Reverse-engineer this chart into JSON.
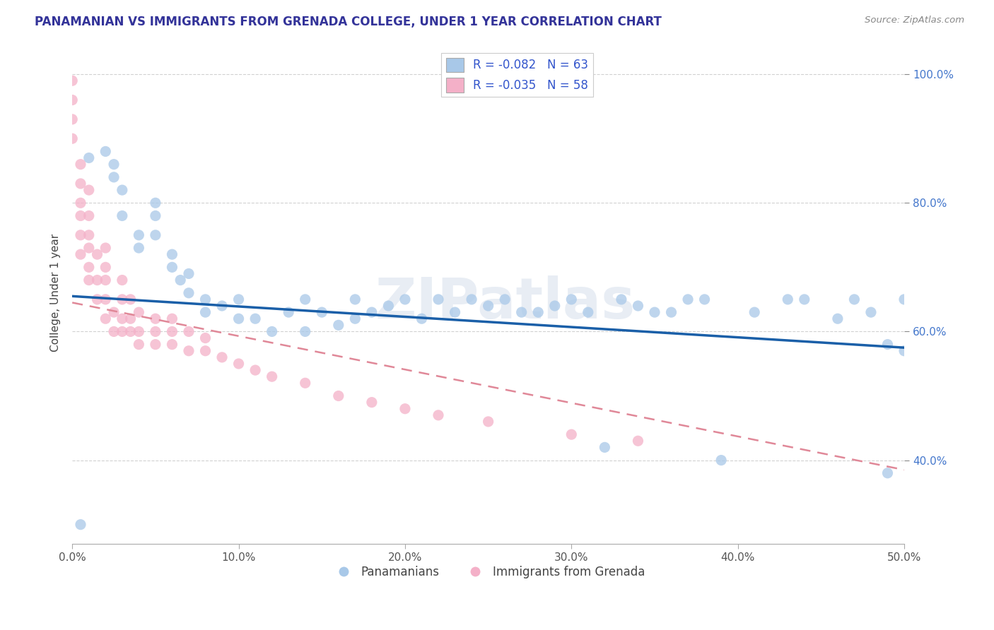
{
  "title": "PANAMANIAN VS IMMIGRANTS FROM GRENADA COLLEGE, UNDER 1 YEAR CORRELATION CHART",
  "source": "Source: ZipAtlas.com",
  "ylabel": "College, Under 1 year",
  "xmin": 0.0,
  "xmax": 0.5,
  "ymin": 0.27,
  "ymax": 1.05,
  "x_tick_labels": [
    "0.0%",
    "10.0%",
    "20.0%",
    "30.0%",
    "40.0%",
    "50.0%"
  ],
  "x_tick_values": [
    0.0,
    0.1,
    0.2,
    0.3,
    0.4,
    0.5
  ],
  "y_tick_labels": [
    "40.0%",
    "60.0%",
    "80.0%",
    "100.0%"
  ],
  "y_tick_values": [
    0.4,
    0.6,
    0.8,
    1.0
  ],
  "blue_R": -0.082,
  "blue_N": 63,
  "pink_R": -0.035,
  "pink_N": 58,
  "blue_color": "#a8c8e8",
  "pink_color": "#f4b0c8",
  "blue_line_color": "#1a5fa8",
  "pink_line_color": "#e08898",
  "legend_label_blue": "Panamanians",
  "legend_label_pink": "Immigrants from Grenada",
  "watermark": "ZIPatlas",
  "blue_scatter_x": [
    0.005,
    0.01,
    0.02,
    0.025,
    0.025,
    0.03,
    0.03,
    0.04,
    0.04,
    0.05,
    0.05,
    0.05,
    0.06,
    0.06,
    0.065,
    0.07,
    0.07,
    0.08,
    0.08,
    0.09,
    0.1,
    0.1,
    0.11,
    0.12,
    0.13,
    0.14,
    0.14,
    0.15,
    0.16,
    0.17,
    0.17,
    0.18,
    0.19,
    0.2,
    0.21,
    0.22,
    0.23,
    0.24,
    0.25,
    0.26,
    0.27,
    0.28,
    0.29,
    0.3,
    0.31,
    0.32,
    0.33,
    0.34,
    0.35,
    0.36,
    0.37,
    0.38,
    0.39,
    0.41,
    0.43,
    0.44,
    0.46,
    0.47,
    0.48,
    0.49,
    0.49,
    0.5,
    0.5
  ],
  "blue_scatter_y": [
    0.3,
    0.87,
    0.88,
    0.86,
    0.84,
    0.78,
    0.82,
    0.75,
    0.73,
    0.8,
    0.78,
    0.75,
    0.72,
    0.7,
    0.68,
    0.66,
    0.69,
    0.65,
    0.63,
    0.64,
    0.62,
    0.65,
    0.62,
    0.6,
    0.63,
    0.6,
    0.65,
    0.63,
    0.61,
    0.65,
    0.62,
    0.63,
    0.64,
    0.65,
    0.62,
    0.65,
    0.63,
    0.65,
    0.64,
    0.65,
    0.63,
    0.63,
    0.64,
    0.65,
    0.63,
    0.42,
    0.65,
    0.64,
    0.63,
    0.63,
    0.65,
    0.65,
    0.4,
    0.63,
    0.65,
    0.65,
    0.62,
    0.65,
    0.63,
    0.58,
    0.38,
    0.57,
    0.65
  ],
  "pink_scatter_x": [
    0.0,
    0.0,
    0.0,
    0.0,
    0.005,
    0.005,
    0.005,
    0.005,
    0.005,
    0.005,
    0.01,
    0.01,
    0.01,
    0.01,
    0.01,
    0.01,
    0.015,
    0.015,
    0.015,
    0.02,
    0.02,
    0.02,
    0.02,
    0.02,
    0.025,
    0.025,
    0.03,
    0.03,
    0.03,
    0.03,
    0.035,
    0.035,
    0.035,
    0.04,
    0.04,
    0.04,
    0.05,
    0.05,
    0.05,
    0.06,
    0.06,
    0.06,
    0.07,
    0.07,
    0.08,
    0.08,
    0.09,
    0.1,
    0.11,
    0.12,
    0.14,
    0.16,
    0.18,
    0.2,
    0.22,
    0.25,
    0.3,
    0.34
  ],
  "pink_scatter_y": [
    0.9,
    0.93,
    0.96,
    0.99,
    0.72,
    0.75,
    0.78,
    0.8,
    0.83,
    0.86,
    0.68,
    0.7,
    0.73,
    0.75,
    0.78,
    0.82,
    0.65,
    0.68,
    0.72,
    0.62,
    0.65,
    0.68,
    0.7,
    0.73,
    0.6,
    0.63,
    0.6,
    0.62,
    0.65,
    0.68,
    0.6,
    0.62,
    0.65,
    0.58,
    0.6,
    0.63,
    0.58,
    0.6,
    0.62,
    0.58,
    0.6,
    0.62,
    0.57,
    0.6,
    0.57,
    0.59,
    0.56,
    0.55,
    0.54,
    0.53,
    0.52,
    0.5,
    0.49,
    0.48,
    0.47,
    0.46,
    0.44,
    0.43
  ],
  "blue_trend_x": [
    0.0,
    0.5
  ],
  "blue_trend_y": [
    0.655,
    0.575
  ],
  "pink_trend_x": [
    0.0,
    0.5
  ],
  "pink_trend_y": [
    0.645,
    0.385
  ],
  "background_color": "#ffffff",
  "grid_color": "#cccccc"
}
